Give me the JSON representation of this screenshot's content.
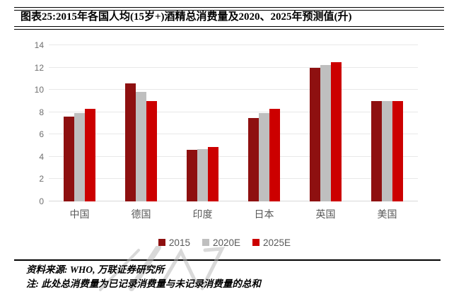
{
  "header": {
    "title": "图表25:2015年各国人均(15岁+)酒精总消费量及2020、2025年预测值(升)"
  },
  "chart_data": {
    "type": "bar",
    "title": "图表25:2015年各国人均(15岁+)酒精总消费量及2020、2025年预测值(升)",
    "categories": [
      "中国",
      "德国",
      "印度",
      "日本",
      "英国",
      "美国"
    ],
    "series": [
      {
        "name": "2015",
        "color": "#8e1010",
        "values": [
          7.6,
          10.6,
          4.6,
          7.5,
          12.0,
          9.0
        ]
      },
      {
        "name": "2020E",
        "color": "#bfbfbf",
        "values": [
          7.9,
          9.8,
          4.7,
          7.9,
          12.2,
          9.0
        ]
      },
      {
        "name": "2025E",
        "color": "#cc0000",
        "values": [
          8.3,
          9.0,
          4.9,
          8.3,
          12.5,
          9.0
        ]
      }
    ],
    "xlabel": "",
    "ylabel": "",
    "ylim": [
      0,
      14
    ],
    "ytick_step": 2,
    "grid": "horizontal",
    "legend_position": "bottom"
  },
  "footer": {
    "source": "资料来源: WHO, 万联证券研究所",
    "note": "注: 此处总消费量为已记录消费量与未记录消费量的总和"
  },
  "colors": {
    "series_2015": "#8e1010",
    "series_2020e": "#bfbfbf",
    "series_2025e": "#cc0000",
    "gridline": "#e8e8e8",
    "axis_text": "#6e6e6e",
    "category_text": "#595959",
    "rule": "#000000"
  }
}
